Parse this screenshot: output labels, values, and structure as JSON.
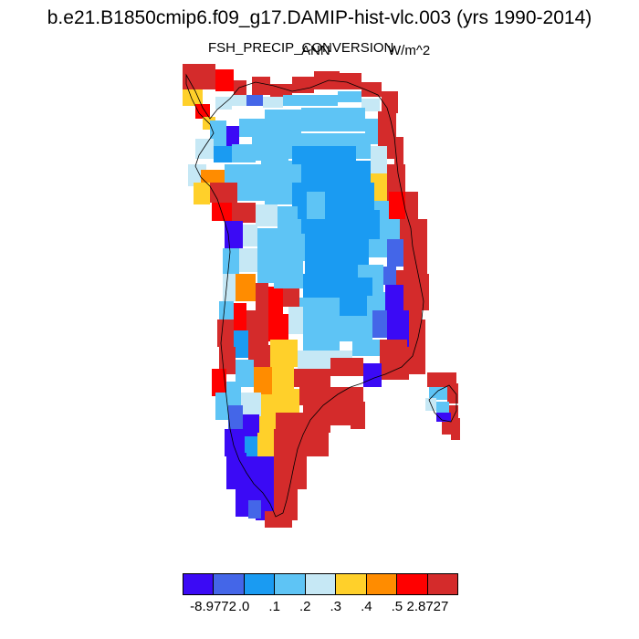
{
  "title": "b.e21.B1850cmip6.f09_g17.DAMIP-hist-vlc.003 (yrs 1990-2014)",
  "variable": "FSH_PRECIP_CONVERSION",
  "season": "ANN",
  "units": "W/m^2",
  "colorbar": {
    "colors": [
      "#3b0af5",
      "#4466e8",
      "#1a9bf2",
      "#5ec4f5",
      "#c6e8f5",
      "#ffd02a",
      "#ff8c00",
      "#ff0000",
      "#d42b2b"
    ],
    "labels": [
      "-8.9772",
      ".0",
      ".1",
      ".2",
      ".3",
      ".4",
      ".5",
      "2.8727"
    ]
  },
  "map": {
    "region": "Greenland",
    "projection": "polar stereographic",
    "outline_color": "#000000"
  }
}
